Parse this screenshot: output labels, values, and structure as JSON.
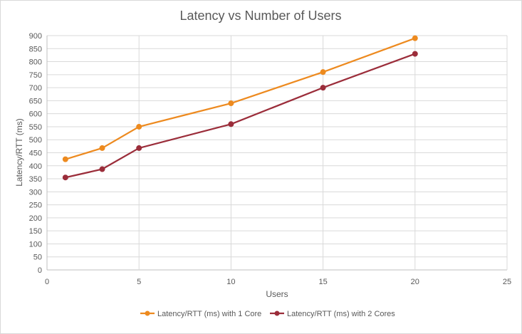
{
  "chart_data": {
    "type": "scatter",
    "title": "Latency vs Number of Users",
    "xlabel": "Users",
    "ylabel": "Latency/RTT (ms)",
    "xlim": [
      0,
      25
    ],
    "ylim": [
      0,
      900
    ],
    "x_ticks": [
      0,
      5,
      10,
      15,
      20,
      25
    ],
    "y_ticks": [
      0,
      50,
      100,
      150,
      200,
      250,
      300,
      350,
      400,
      450,
      500,
      550,
      600,
      650,
      700,
      750,
      800,
      850,
      900
    ],
    "grid": true,
    "legend_position": "bottom",
    "series": [
      {
        "name": "Latency/RTT (ms) with 1 Core",
        "color": "#ed8a1f",
        "x": [
          1,
          3,
          5,
          10,
          15,
          20
        ],
        "y": [
          425,
          468,
          550,
          640,
          760,
          890
        ]
      },
      {
        "name": "Latency/RTT (ms) with 2 Cores",
        "color": "#9b2d3a",
        "x": [
          1,
          3,
          5,
          10,
          15,
          20
        ],
        "y": [
          355,
          387,
          468,
          560,
          700,
          830
        ]
      }
    ]
  }
}
